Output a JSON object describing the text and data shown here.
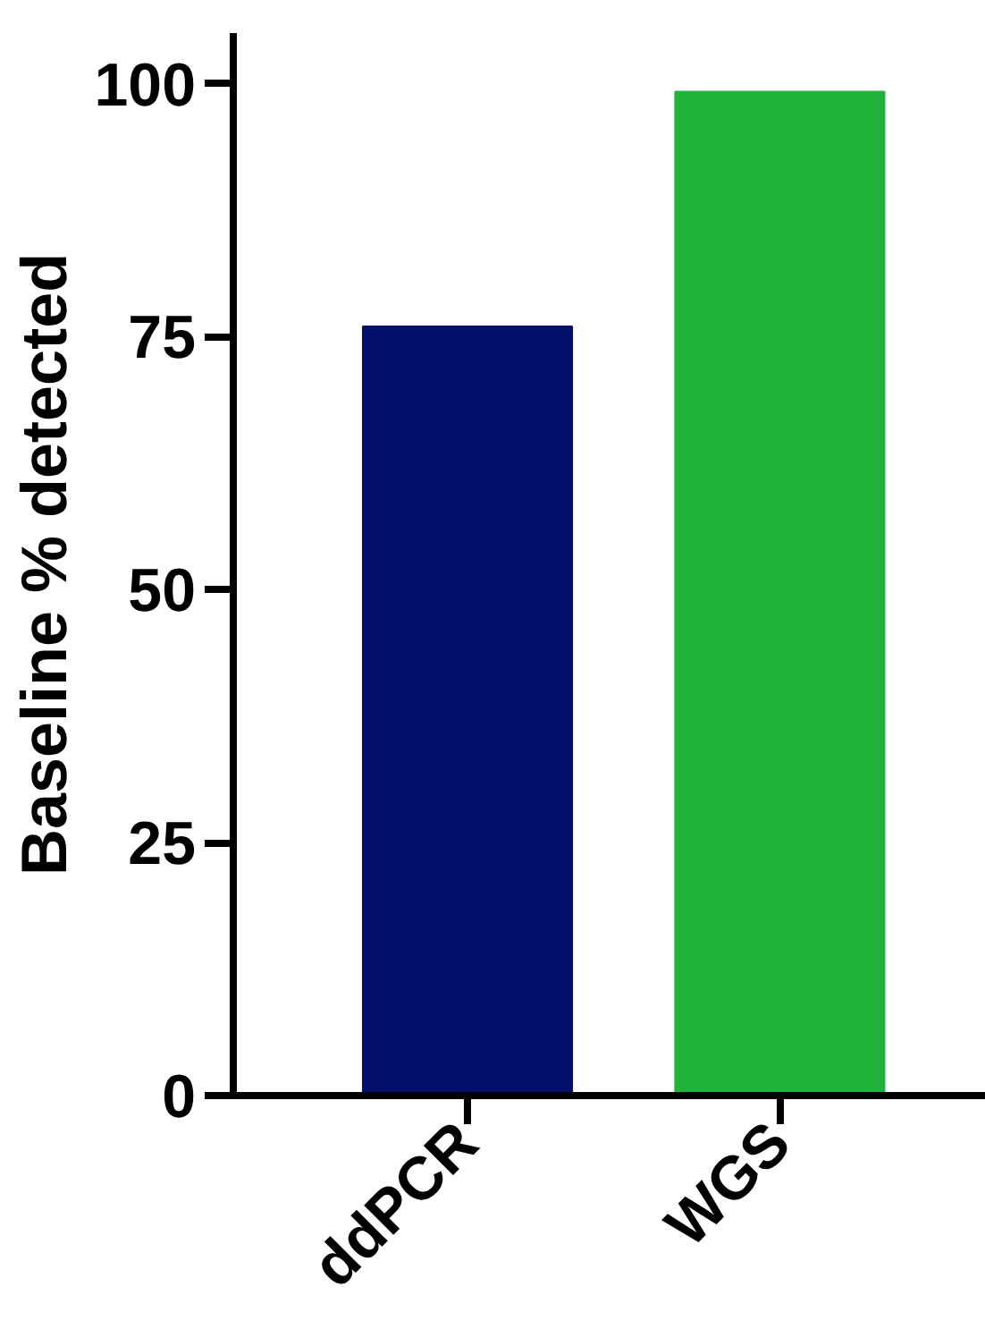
{
  "chart_data": {
    "type": "bar",
    "ylabel": "Baseline % detected",
    "categories": [
      "ddPCR",
      "WGS"
    ],
    "values": [
      76,
      99.2
    ],
    "colors": [
      "#020f6b",
      "#21b23c"
    ],
    "ylim": [
      0,
      105
    ],
    "yticks": [
      0,
      25,
      50,
      75,
      100
    ],
    "grid": false
  }
}
